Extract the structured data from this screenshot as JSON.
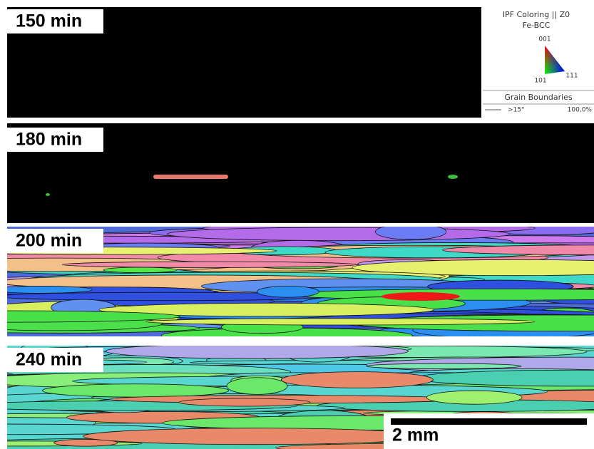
{
  "panels": [
    {
      "label": "150 min"
    },
    {
      "label": "180 min"
    },
    {
      "label": "200 min"
    },
    {
      "label": "240 min"
    }
  ],
  "legend": {
    "title": "IPF Coloring || Z0",
    "phase": "Fe-BCC",
    "corner_top": "001",
    "corner_left": "101",
    "corner_right": "111",
    "section_title": "Grain Boundaries",
    "boundary_label": ">15°",
    "boundary_fraction": "100,0%"
  },
  "scale_bar": {
    "label": "2 mm"
  }
}
